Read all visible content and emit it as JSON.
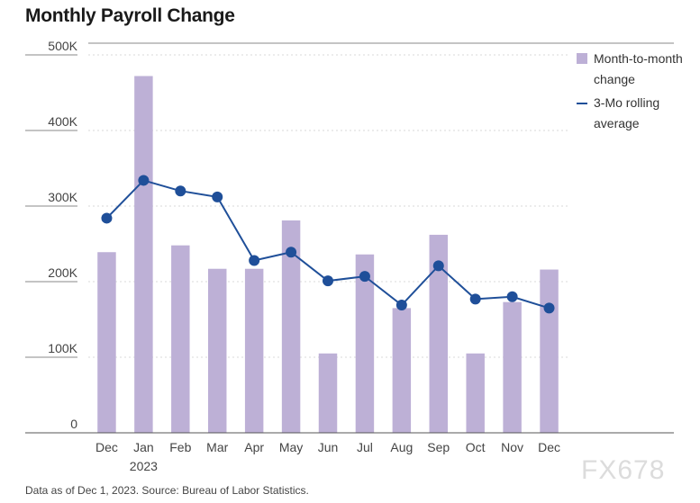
{
  "title": "Monthly Payroll Change",
  "footnote": "Data as of Dec 1, 2023. Source: Bureau of Labor Statistics.",
  "watermark": "FX678",
  "legend": {
    "bar_label": "Month-to-month change",
    "line_label": "3-Mo rolling average"
  },
  "colors": {
    "bar": "#bdb0d6",
    "line": "#1f4f99",
    "grid": "#d8d8d8",
    "axis": "#888888"
  },
  "chart_data": {
    "type": "bar",
    "categories": [
      "Dec",
      "Jan",
      "Feb",
      "Mar",
      "Apr",
      "May",
      "Jun",
      "Jul",
      "Aug",
      "Sep",
      "Oct",
      "Nov",
      "Dec"
    ],
    "category_sublabels": [
      "",
      "2023",
      "",
      "",
      "",
      "",
      "",
      "",
      "",
      "",
      "",
      "",
      ""
    ],
    "series": [
      {
        "name": "Month-to-month change",
        "type": "bar",
        "values": [
          239,
          472,
          248,
          217,
          217,
          281,
          105,
          236,
          165,
          262,
          105,
          173,
          216
        ]
      },
      {
        "name": "3-Mo rolling average",
        "type": "line",
        "values": [
          284,
          334,
          320,
          312,
          228,
          239,
          201,
          207,
          169,
          221,
          177,
          180,
          165
        ]
      }
    ],
    "yticks": [
      0,
      100,
      200,
      300,
      400,
      500
    ],
    "ytick_labels": [
      "0",
      "100K",
      "200K",
      "300K",
      "400K",
      "500K"
    ],
    "ylim": [
      0,
      500
    ],
    "title": "Monthly Payroll Change",
    "xlabel": "",
    "ylabel": "",
    "grid": true,
    "legend_position": "right"
  }
}
